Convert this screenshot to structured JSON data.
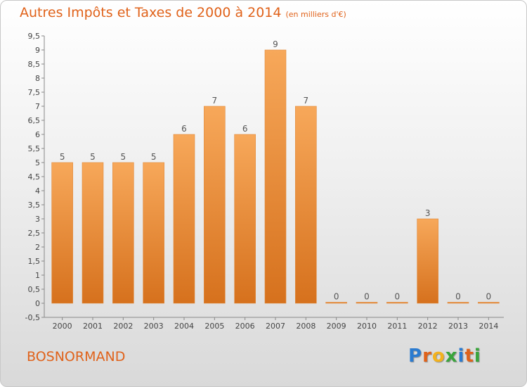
{
  "title": "Autres Impôts et Taxes de 2000 à 2014",
  "unit_label": "(en milliers d'€)",
  "commune": "BOSNORMAND",
  "logo": {
    "text": "Proxiti",
    "letters": [
      {
        "ch": "P",
        "color": "#2b7bd0"
      },
      {
        "ch": "r",
        "color": "#e0621a"
      },
      {
        "ch": "o",
        "color": "#f3b21e"
      },
      {
        "ch": "x",
        "color": "#3aa53c"
      },
      {
        "ch": "i",
        "color": "#2b7bd0"
      },
      {
        "ch": "t",
        "color": "#e0621a"
      },
      {
        "ch": "i",
        "color": "#3aa53c"
      }
    ]
  },
  "colors": {
    "bar_top": "#f7a85a",
    "bar_bottom": "#d6711d",
    "accent": "#e0621a"
  },
  "chart_data": {
    "type": "bar",
    "categories": [
      "2000",
      "2001",
      "2002",
      "2003",
      "2004",
      "2005",
      "2006",
      "2007",
      "2008",
      "2009",
      "2010",
      "2011",
      "2012",
      "2013",
      "2014"
    ],
    "values": [
      5,
      5,
      5,
      5,
      6,
      7,
      6,
      9,
      7,
      0,
      0,
      0,
      3,
      0,
      0
    ],
    "data_labels": [
      "5",
      "5",
      "5",
      "5",
      "6",
      "7",
      "6",
      "9",
      "7",
      "0",
      "0",
      "0",
      "3",
      "0",
      "0"
    ],
    "ylim": [
      -0.5,
      9.5
    ],
    "yticks": [
      -0.5,
      0,
      0.5,
      1,
      1.5,
      2,
      2.5,
      3,
      3.5,
      4,
      4.5,
      5,
      5.5,
      6,
      6.5,
      7,
      7.5,
      8,
      8.5,
      9,
      9.5
    ],
    "ytick_labels": [
      "-0,5",
      "0",
      "0,5",
      "1",
      "1,5",
      "2",
      "2,5",
      "3",
      "3,5",
      "4",
      "4,5",
      "5",
      "5,5",
      "6",
      "6,5",
      "7",
      "7,5",
      "8",
      "8,5",
      "9",
      "9,5"
    ],
    "grid": false,
    "legend": "none"
  }
}
